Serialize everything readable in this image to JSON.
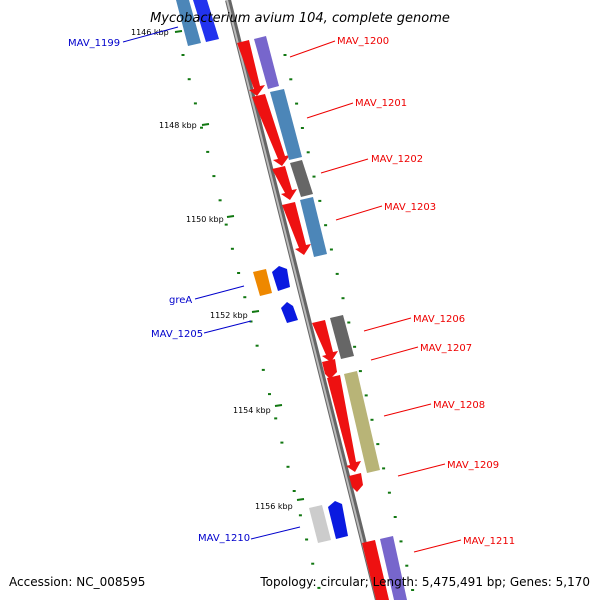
{
  "title": "Mycobacterium avium 104, complete genome",
  "footer": {
    "accession": "Accession: NC_008595",
    "stats": "Topology: circular; Length: 5,475,491 bp; Genes: 5,170"
  },
  "colors": {
    "forward_label": "#ff0000",
    "reverse_label": "#0000cc",
    "backbone": "#888888",
    "tick": "#117711"
  },
  "ticks": [
    "1146 kbp",
    "1148 kbp",
    "1150 kbp",
    "1152 kbp",
    "1154 kbp",
    "1156 kbp"
  ],
  "genes": [
    {
      "label": "MAV_1199",
      "strand": "reverse"
    },
    {
      "label": "MAV_1200",
      "strand": "forward"
    },
    {
      "label": "MAV_1201",
      "strand": "forward"
    },
    {
      "label": "MAV_1202",
      "strand": "forward"
    },
    {
      "label": "MAV_1203",
      "strand": "forward"
    },
    {
      "label": "greA",
      "strand": "reverse"
    },
    {
      "label": "MAV_1205",
      "strand": "reverse"
    },
    {
      "label": "MAV_1206",
      "strand": "forward"
    },
    {
      "label": "MAV_1207",
      "strand": "forward"
    },
    {
      "label": "MAV_1208",
      "strand": "forward"
    },
    {
      "label": "MAV_1209",
      "strand": "forward"
    },
    {
      "label": "MAV_1210",
      "strand": "reverse"
    },
    {
      "label": "MAV_1211",
      "strand": "forward"
    }
  ]
}
